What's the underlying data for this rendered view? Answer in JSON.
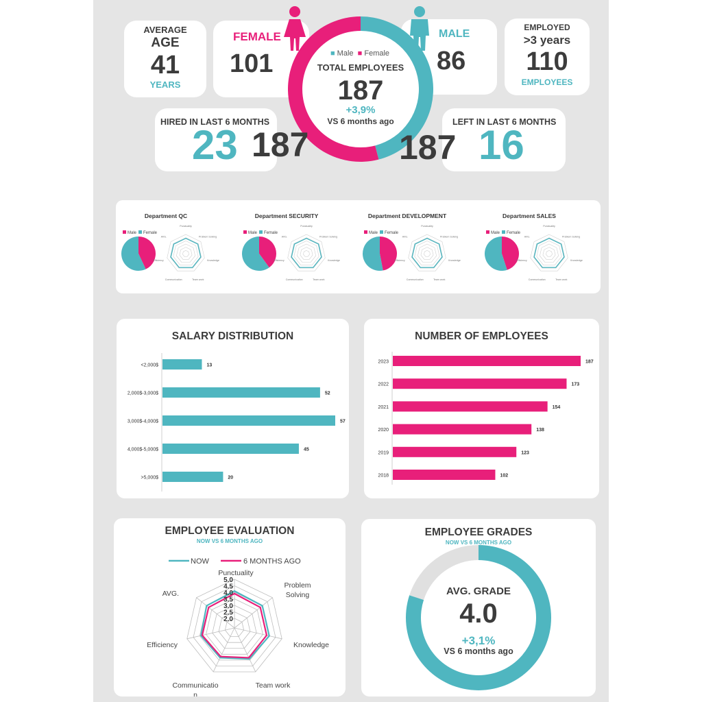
{
  "colors": {
    "teal": "#4fb6c0",
    "pink": "#e81f7a",
    "background": "#e5e5e5",
    "grey": "#e0e0e0"
  },
  "avg_age": {
    "label1": "AVERAGE",
    "label2": "AGE",
    "value": "41",
    "unit": "YEARS"
  },
  "female": {
    "label": "FEMALE",
    "value": "101",
    "icon": "female-person-icon"
  },
  "male": {
    "label": "MALE",
    "value": "86",
    "icon": "male-person-icon"
  },
  "employed": {
    "label1": "EMPLOYED",
    "label2": ">3 years",
    "value": "110",
    "unit": "EMPLOYEES"
  },
  "total": {
    "legend_male": "Male",
    "legend_female": "Female",
    "label": "TOTAL EMPLOYEES",
    "value": "187",
    "change": "+3,9%",
    "compare": "VS 6 months ago"
  },
  "hired": {
    "label": "HIRED IN LAST 6 MONTHS",
    "value": "23",
    "overlap": "187"
  },
  "left": {
    "label": "LEFT IN LAST 6 MONTHS",
    "value": "16",
    "overlap": "187"
  },
  "departments": [
    {
      "title": "Department QC",
      "male": "Male",
      "female": "Female",
      "female_pct": 43
    },
    {
      "title": "Department SECURITY",
      "male": "Male",
      "female": "Female",
      "female_pct": 40
    },
    {
      "title": "Department DEVELOPMENT",
      "male": "Male",
      "female": "Female",
      "female_pct": 47
    },
    {
      "title": "Department SALES",
      "male": "Male",
      "female": "Female",
      "female_pct": 45
    }
  ],
  "salary": {
    "title": "SALARY DISTRIBUTION"
  },
  "employees_chart": {
    "title": "NUMBER OF EMPLOYEES"
  },
  "evaluation": {
    "title": "EMPLOYEE EVALUATION",
    "subtitle": "NOW VS 6 MONTHS AGO",
    "legend_now": "NOW",
    "legend_ago": "6 MONTHS AGO"
  },
  "grades": {
    "title": "EMPLOYEE GRADES",
    "subtitle": "NOW VS 6 MONTHS AGO",
    "label": "AVG. GRADE",
    "value": "4.0",
    "change": "+3,1%",
    "compare": "VS 6 months ago",
    "fill_fraction": 0.8
  },
  "chart_data": [
    {
      "type": "bar",
      "orientation": "horizontal",
      "title": "SALARY DISTRIBUTION",
      "categories": [
        "<2,000$",
        "2,000$-3,000$",
        "3,000$-4,000$",
        "4,000$-5,000$",
        ">5,000$"
      ],
      "values": [
        13,
        52,
        57,
        45,
        20
      ],
      "xlim": [
        0,
        57
      ]
    },
    {
      "type": "bar",
      "orientation": "horizontal",
      "title": "NUMBER OF EMPLOYEES",
      "categories": [
        "2023",
        "2022",
        "2021",
        "2020",
        "2019",
        "2018"
      ],
      "values": [
        187,
        173,
        154,
        138,
        123,
        102
      ],
      "xlim": [
        0,
        187
      ]
    },
    {
      "type": "pie",
      "title": "TOTAL EMPLOYEES",
      "labels": [
        "Male",
        "Female"
      ],
      "values": [
        86,
        101
      ]
    },
    {
      "type": "radar",
      "title": "EMPLOYEE EVALUATION",
      "axes": [
        "Punctuality",
        "Problem Solving",
        "Knowledge",
        "Team work",
        "Communication",
        "Efficiency",
        "AVG."
      ],
      "ticks": [
        "5.0",
        "4.5",
        "4.0",
        "3.5",
        "3.0",
        "2.5",
        "2.0"
      ],
      "rlim": [
        2.0,
        5.0
      ],
      "series": [
        {
          "name": "NOW",
          "values": [
            4.1,
            4.0,
            4.0,
            3.9,
            3.8,
            3.9,
            4.0
          ]
        },
        {
          "name": "6 MONTHS AGO",
          "values": [
            3.9,
            3.8,
            3.8,
            3.8,
            3.7,
            3.8,
            3.8
          ]
        }
      ]
    }
  ]
}
